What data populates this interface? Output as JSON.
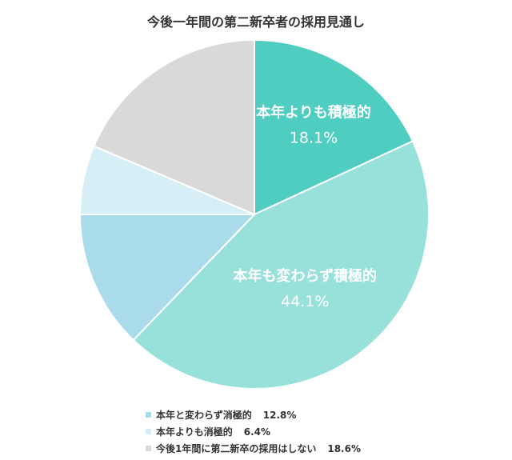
{
  "chart_data": {
    "type": "pie",
    "title": "今後一年間の第二新卒者の採用見通し",
    "slices": [
      {
        "label": "本年よりも積極的",
        "value": 18.1,
        "display": "18.1%",
        "color": "#4ecdc0",
        "labeled_inside": true
      },
      {
        "label": "本年も変わらず積極的",
        "value": 44.1,
        "display": "44.1%",
        "color": "#98e1da",
        "labeled_inside": true
      },
      {
        "label": "本年と変わらず消極的",
        "value": 12.8,
        "display": "12.8%",
        "color": "#a9dbea",
        "labeled_inside": false
      },
      {
        "label": "本年よりも消極的",
        "value": 6.4,
        "display": "6.4%",
        "color": "#d6eff6",
        "labeled_inside": false
      },
      {
        "label": "今後1年間に第二新卒の採用はしない",
        "value": 18.6,
        "display": "18.6%",
        "color": "#d9d9d9",
        "labeled_inside": false
      }
    ],
    "start_angle_deg": 0,
    "direction": "clockwise",
    "legend_position": "bottom"
  },
  "legend": [
    {
      "label": "本年と変わらず消極的",
      "value": "12.8%",
      "color": "#a9dbea"
    },
    {
      "label": "本年よりも消極的",
      "value": "6.4%",
      "color": "#d6eff6"
    },
    {
      "label": "今後1年間に第二新卒の採用はしない",
      "value": "18.6%",
      "color": "#d9d9d9"
    }
  ]
}
